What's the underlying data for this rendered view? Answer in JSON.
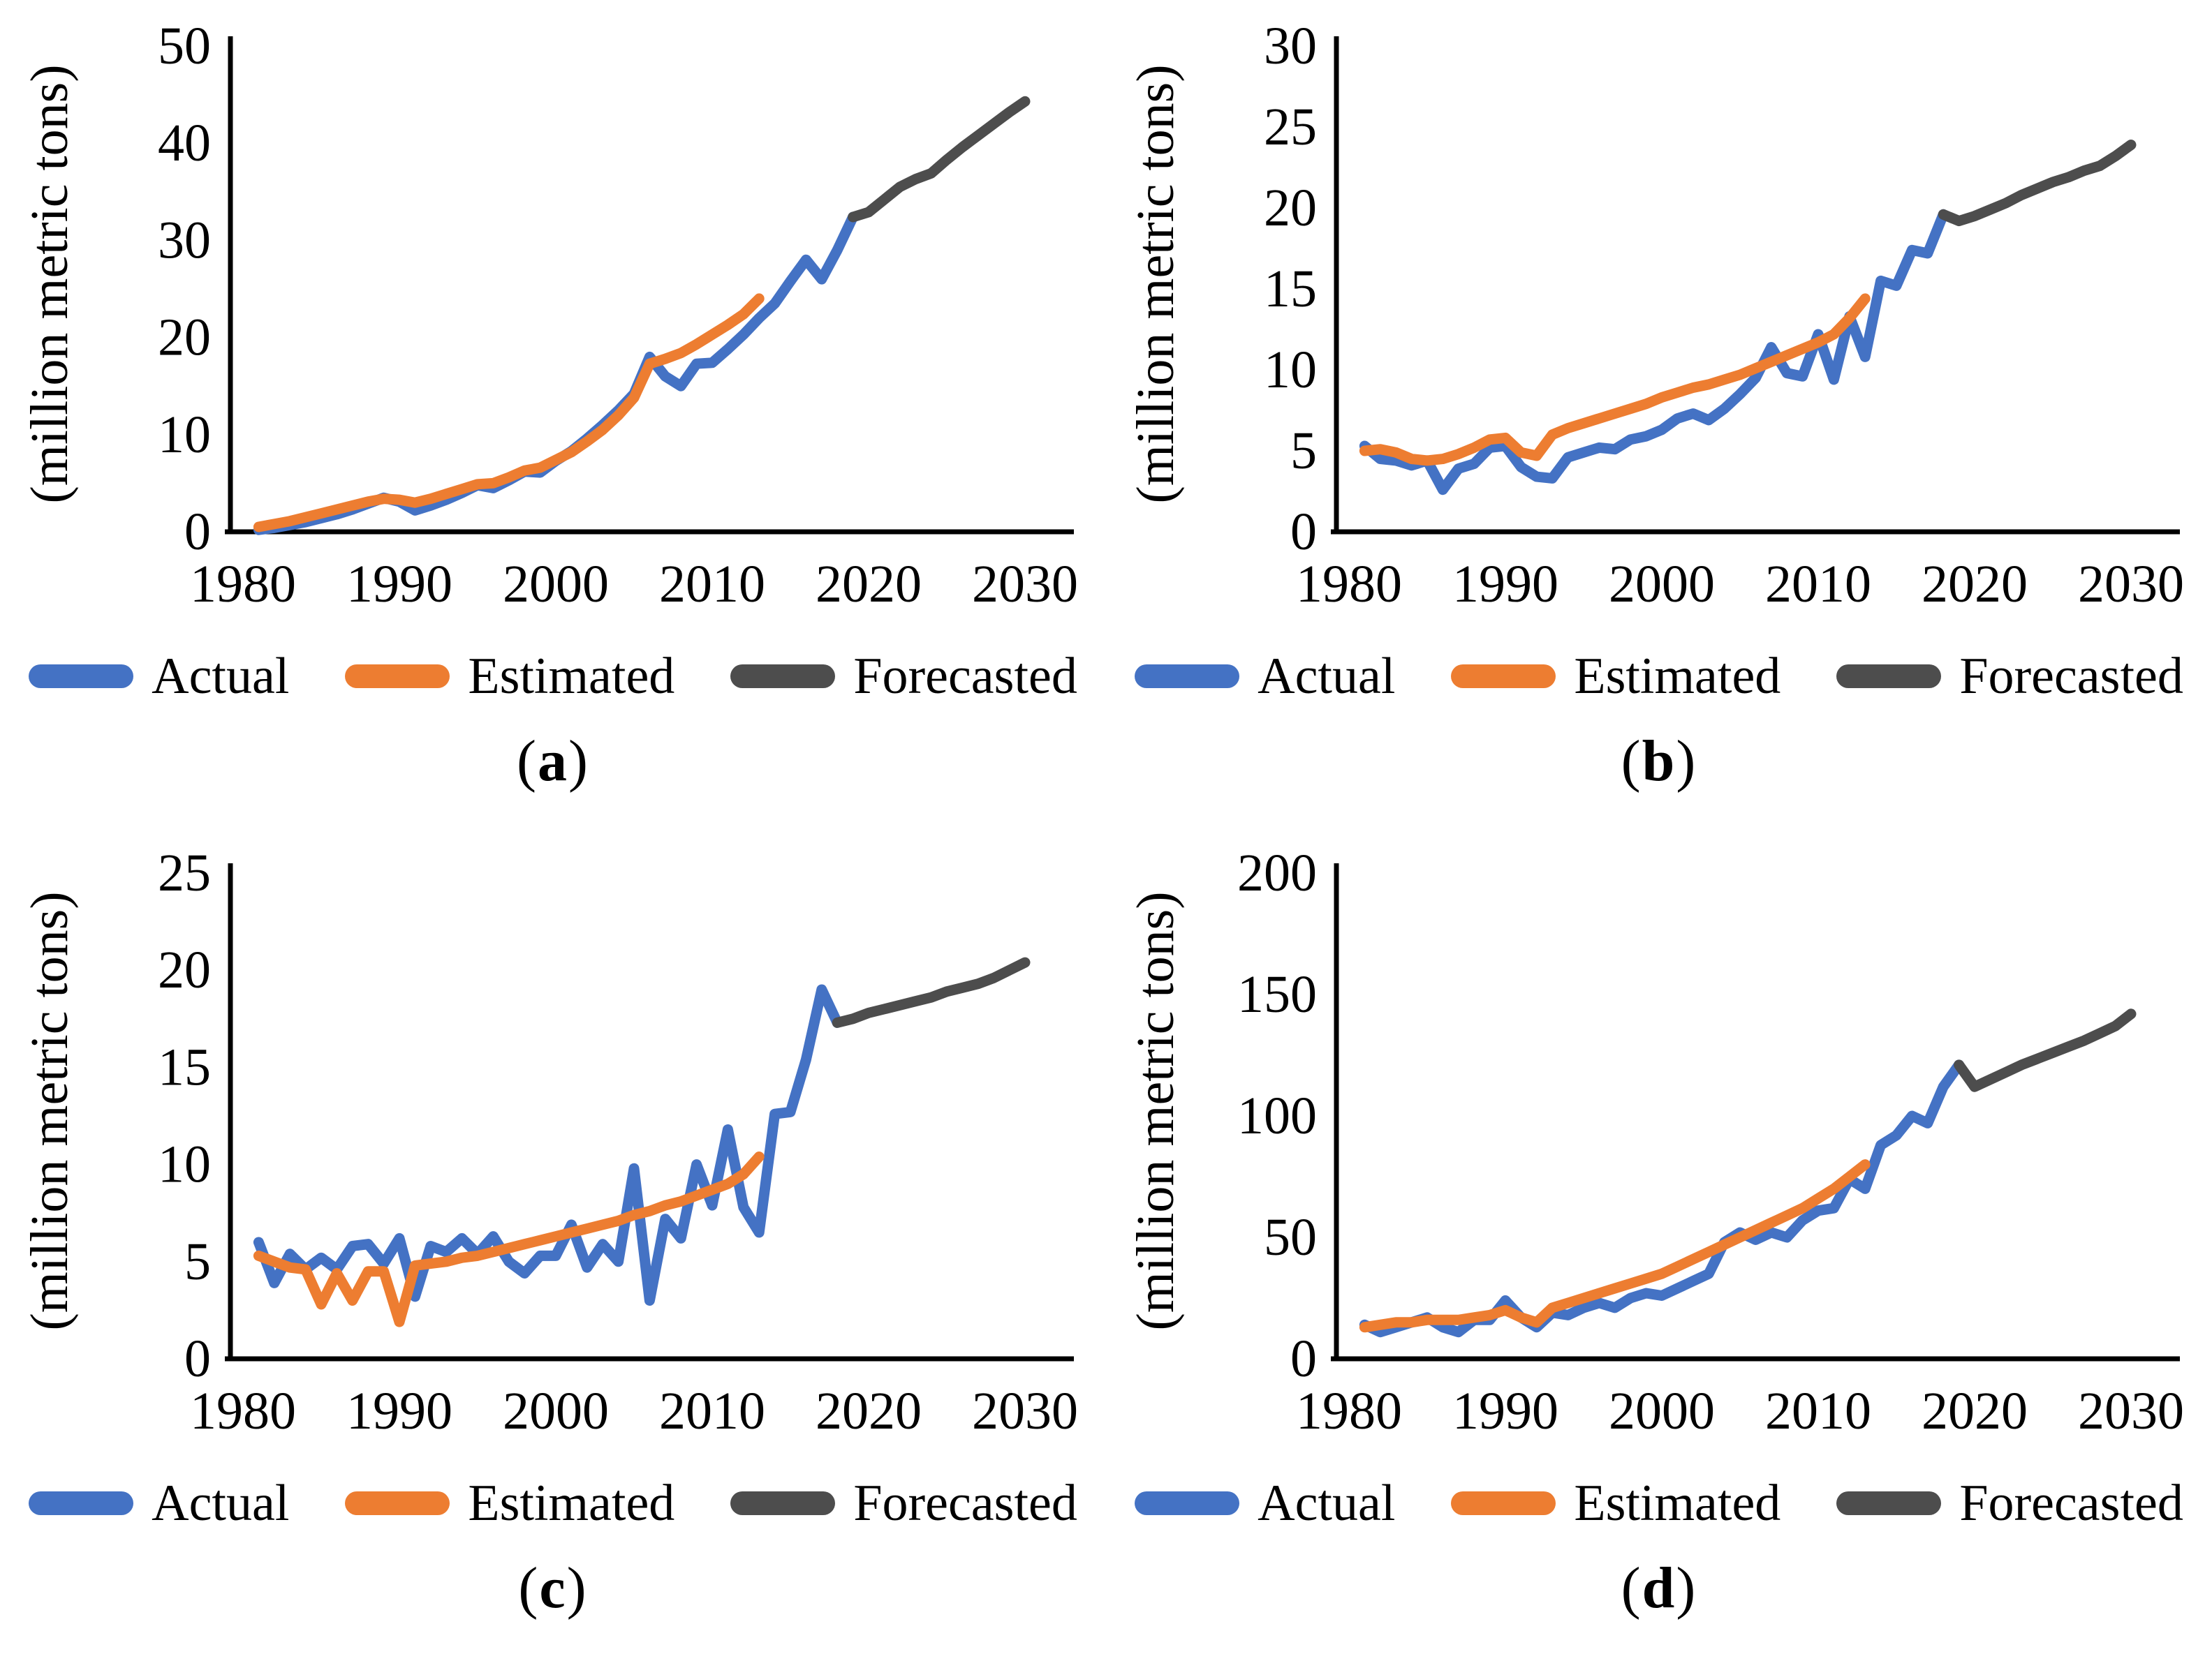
{
  "figure": {
    "background": "#ffffff",
    "axis_color": "#000000",
    "text_color": "#000000",
    "colors": {
      "actual": "#4472C4",
      "estimated": "#ED7D31",
      "forecasted": "#4D4D4D"
    }
  },
  "chart_data": [
    {
      "id": "a",
      "type": "line",
      "panel_label": {
        "open": "(",
        "letter": "a",
        "close": ")"
      },
      "ylabel": "(million metric tons)",
      "xlabel": "",
      "xlim": [
        1980,
        2030
      ],
      "ylim": [
        0,
        50
      ],
      "yticks": [
        0,
        10,
        20,
        30,
        40,
        50
      ],
      "xticks": [
        1980,
        1990,
        2000,
        2010,
        2020,
        2030
      ],
      "grid": false,
      "legend_position": "bottom",
      "series": [
        {
          "name": "Actual",
          "color": "#4472C4",
          "start_year": 1981,
          "values": [
            0.2,
            0.4,
            0.7,
            1.0,
            1.4,
            1.8,
            2.3,
            2.9,
            3.5,
            3.1,
            2.2,
            2.7,
            3.3,
            4.0,
            4.8,
            4.5,
            5.3,
            6.2,
            6.1,
            7.3,
            8.3,
            9.6,
            11.0,
            12.5,
            14.2,
            18.0,
            16.0,
            15.0,
            17.3,
            17.4,
            18.8,
            20.3,
            22.0,
            23.5,
            25.8,
            28.0,
            26.0,
            29.0,
            32.4
          ]
        },
        {
          "name": "Estimated",
          "color": "#ED7D31",
          "start_year": 1981,
          "values": [
            0.5,
            0.8,
            1.1,
            1.5,
            1.9,
            2.3,
            2.7,
            3.1,
            3.4,
            3.3,
            3.0,
            3.4,
            3.9,
            4.4,
            4.9,
            5.0,
            5.6,
            6.3,
            6.6,
            7.4,
            8.2,
            9.3,
            10.5,
            12.0,
            13.8,
            17.3,
            17.8,
            18.4,
            19.3,
            20.3,
            21.3,
            22.4,
            24.0
          ]
        },
        {
          "name": "Forecasted",
          "color": "#4D4D4D",
          "start_year": 2019,
          "values": [
            32.4,
            32.9,
            34.2,
            35.5,
            36.3,
            36.9,
            38.3,
            39.6,
            40.8,
            42.0,
            43.2,
            44.3
          ]
        }
      ]
    },
    {
      "id": "b",
      "type": "line",
      "panel_label": {
        "open": "(",
        "letter": "b",
        "close": ")"
      },
      "ylabel": "(million metric tons)",
      "xlabel": "",
      "xlim": [
        1980,
        2030
      ],
      "ylim": [
        0,
        30
      ],
      "yticks": [
        0,
        5,
        10,
        15,
        20,
        25,
        30
      ],
      "xticks": [
        1980,
        1990,
        2000,
        2010,
        2020,
        2030
      ],
      "grid": false,
      "legend_position": "bottom",
      "series": [
        {
          "name": "Actual",
          "color": "#4472C4",
          "start_year": 1981,
          "values": [
            5.3,
            4.5,
            4.4,
            4.1,
            4.4,
            2.6,
            3.9,
            4.2,
            5.2,
            5.3,
            4.0,
            3.4,
            3.3,
            4.6,
            4.9,
            5.2,
            5.1,
            5.7,
            5.9,
            6.3,
            7.0,
            7.3,
            6.9,
            7.6,
            8.5,
            9.5,
            11.4,
            9.8,
            9.6,
            12.2,
            9.4,
            13.3,
            10.8,
            15.5,
            15.2,
            17.4,
            17.2,
            19.6
          ]
        },
        {
          "name": "Estimated",
          "color": "#ED7D31",
          "start_year": 1981,
          "values": [
            5.0,
            5.1,
            4.9,
            4.5,
            4.4,
            4.5,
            4.8,
            5.2,
            5.7,
            5.8,
            4.9,
            4.7,
            6.0,
            6.4,
            6.7,
            7.0,
            7.3,
            7.6,
            7.9,
            8.3,
            8.6,
            8.9,
            9.1,
            9.4,
            9.7,
            10.1,
            10.5,
            10.9,
            11.3,
            11.7,
            12.2,
            13.2,
            14.4
          ]
        },
        {
          "name": "Forecasted",
          "color": "#4D4D4D",
          "start_year": 2018,
          "values": [
            19.6,
            19.2,
            19.5,
            19.9,
            20.3,
            20.8,
            21.2,
            21.6,
            21.9,
            22.3,
            22.6,
            23.2,
            23.9
          ]
        }
      ]
    },
    {
      "id": "c",
      "type": "line",
      "panel_label": {
        "open": "(",
        "letter": "c",
        "close": ")"
      },
      "ylabel": "(million metric tons)",
      "xlabel": "",
      "xlim": [
        1980,
        2030
      ],
      "ylim": [
        0,
        25
      ],
      "yticks": [
        0,
        5,
        10,
        15,
        20,
        25
      ],
      "xticks": [
        1980,
        1990,
        2000,
        2010,
        2020,
        2030
      ],
      "grid": false,
      "legend_position": "bottom",
      "series": [
        {
          "name": "Actual",
          "color": "#4472C4",
          "start_year": 1981,
          "values": [
            6.0,
            3.9,
            5.4,
            4.6,
            5.2,
            4.6,
            5.8,
            5.9,
            4.9,
            6.2,
            3.2,
            5.8,
            5.5,
            6.2,
            5.4,
            6.3,
            5.0,
            4.4,
            5.3,
            5.3,
            6.9,
            4.7,
            5.9,
            5.0,
            9.8,
            3.0,
            7.2,
            6.2,
            10.0,
            7.9,
            11.8,
            7.8,
            6.5,
            12.6,
            12.7,
            15.4,
            19.0,
            17.3
          ]
        },
        {
          "name": "Estimated",
          "color": "#ED7D31",
          "start_year": 1981,
          "values": [
            5.3,
            5.0,
            4.7,
            4.6,
            2.8,
            4.4,
            3.0,
            4.5,
            4.5,
            1.9,
            4.8,
            4.9,
            5.0,
            5.2,
            5.3,
            5.5,
            5.7,
            5.9,
            6.1,
            6.3,
            6.5,
            6.7,
            6.9,
            7.1,
            7.4,
            7.6,
            7.9,
            8.1,
            8.4,
            8.7,
            9.0,
            9.5,
            10.4
          ]
        },
        {
          "name": "Forecasted",
          "color": "#4D4D4D",
          "start_year": 2018,
          "values": [
            17.3,
            17.5,
            17.8,
            18.0,
            18.2,
            18.4,
            18.6,
            18.9,
            19.1,
            19.3,
            19.6,
            20.0,
            20.4
          ]
        }
      ]
    },
    {
      "id": "d",
      "type": "line",
      "panel_label": {
        "open": "(",
        "letter": "d",
        "close": ")"
      },
      "ylabel": "(million metric tons)",
      "xlabel": "",
      "xlim": [
        1980,
        2030
      ],
      "ylim": [
        0,
        200
      ],
      "yticks": [
        0,
        50,
        100,
        150,
        200
      ],
      "xticks": [
        1980,
        1990,
        2000,
        2010,
        2020,
        2030
      ],
      "grid": false,
      "legend_position": "bottom",
      "series": [
        {
          "name": "Actual",
          "color": "#4472C4",
          "start_year": 1981,
          "values": [
            14,
            11,
            13,
            15,
            17,
            13,
            11,
            16,
            16,
            24,
            17,
            13,
            19,
            18,
            21,
            23,
            21,
            25,
            27,
            26,
            29,
            32,
            35,
            48,
            52,
            49,
            52,
            50,
            57,
            61,
            62,
            74,
            70,
            88,
            92,
            100,
            97,
            112,
            121
          ]
        },
        {
          "name": "Estimated",
          "color": "#ED7D31",
          "start_year": 1981,
          "values": [
            13,
            14,
            15,
            15,
            16,
            16,
            16,
            17,
            18,
            20,
            17,
            15,
            21,
            23,
            25,
            27,
            29,
            31,
            33,
            35,
            38,
            41,
            44,
            47,
            50,
            53,
            56,
            59,
            62,
            66,
            70,
            75,
            80
          ]
        },
        {
          "name": "Forecasted",
          "color": "#4D4D4D",
          "start_year": 2019,
          "values": [
            121,
            112,
            115,
            118,
            121,
            123.5,
            126,
            128.5,
            131,
            134,
            137,
            142
          ]
        }
      ]
    }
  ]
}
